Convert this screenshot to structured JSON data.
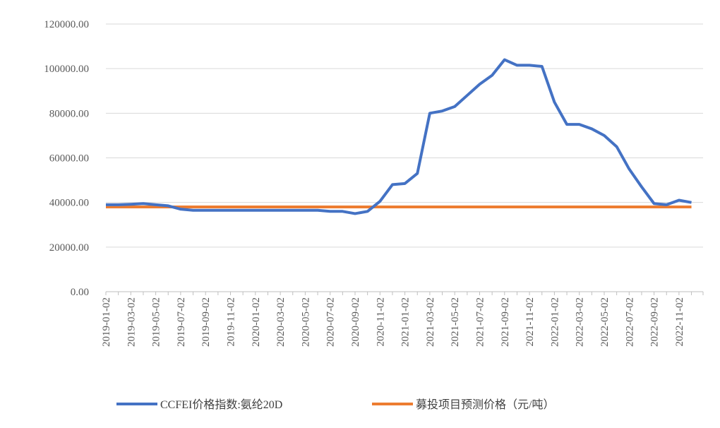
{
  "chart_data": {
    "type": "line",
    "categories": [
      "2019-01-02",
      null,
      "2019-03-02",
      null,
      "2019-05-02",
      null,
      "2019-07-02",
      null,
      "2019-09-02",
      null,
      "2019-11-02",
      null,
      "2020-01-02",
      null,
      "2020-03-02",
      null,
      "2020-05-02",
      null,
      "2020-07-02",
      null,
      "2020-09-02",
      null,
      "2020-11-02",
      null,
      "2021-01-02",
      null,
      "2021-03-02",
      null,
      "2021-05-02",
      null,
      "2021-07-02",
      null,
      "2021-09-02",
      null,
      "2021-11-02",
      null,
      "2022-01-02",
      null,
      "2022-03-02",
      null,
      "2022-05-02",
      null,
      "2022-07-02",
      null,
      "2022-09-02",
      null,
      "2022-11-02",
      null
    ],
    "series": [
      {
        "name": "CCFEI价格指数:氨纶20D",
        "color": "#4472c4",
        "values": [
          39000,
          39000,
          39200,
          39500,
          39000,
          38500,
          37000,
          36500,
          36500,
          36500,
          36500,
          36500,
          36500,
          36500,
          36500,
          36500,
          36500,
          36500,
          36000,
          36000,
          35000,
          36000,
          40500,
          48000,
          48500,
          53000,
          80000,
          81000,
          83000,
          88000,
          93000,
          97000,
          104000,
          101500,
          101500,
          101000,
          85000,
          75000,
          75000,
          73000,
          70000,
          65000,
          55000,
          47000,
          39500,
          39000,
          41000,
          40000
        ]
      },
      {
        "name": "募投项目预测价格（元/吨）",
        "color": "#ed7d31",
        "values": [
          38000,
          38000,
          38000,
          38000,
          38000,
          38000,
          38000,
          38000,
          38000,
          38000,
          38000,
          38000,
          38000,
          38000,
          38000,
          38000,
          38000,
          38000,
          38000,
          38000,
          38000,
          38000,
          38000,
          38000,
          38000,
          38000,
          38000,
          38000,
          38000,
          38000,
          38000,
          38000,
          38000,
          38000,
          38000,
          38000,
          38000,
          38000,
          38000,
          38000,
          38000,
          38000,
          38000,
          38000,
          38000,
          38000,
          38000,
          38000
        ]
      }
    ],
    "ylim": [
      0,
      120000
    ],
    "yticks": [
      {
        "value": 0,
        "label": "0.00"
      },
      {
        "value": 20000,
        "label": "20000.00"
      },
      {
        "value": 40000,
        "label": "40000.00"
      },
      {
        "value": 60000,
        "label": "60000.00"
      },
      {
        "value": 80000,
        "label": "80000.00"
      },
      {
        "value": 100000,
        "label": "100000.00"
      },
      {
        "value": 120000,
        "label": "120000.00"
      }
    ],
    "grid": true,
    "legend": "bottom"
  }
}
